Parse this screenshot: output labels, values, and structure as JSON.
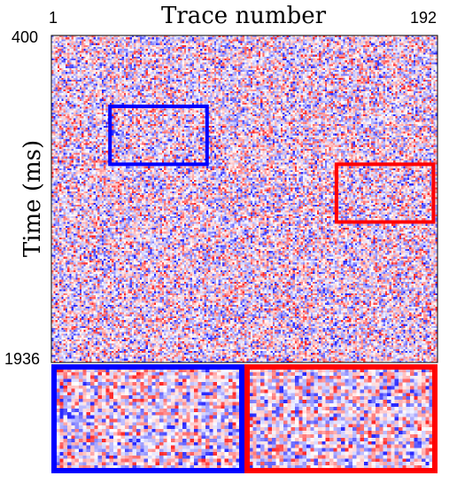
{
  "chart_data": {
    "type": "heatmap",
    "title": "",
    "xlabel": "Trace number",
    "ylabel": "Time (ms)",
    "x_ticks": [
      "1",
      "192"
    ],
    "y_ticks": [
      "400",
      "1936"
    ],
    "xlim": [
      1,
      192
    ],
    "ylim": [
      400,
      1936
    ],
    "colormap": [
      "#2a2aff",
      "#ffffff",
      "#ff2a2a"
    ],
    "highlight_boxes": [
      {
        "color": "#0000ff",
        "trace_range": [
          30,
          78
        ],
        "time_range": [
          733,
          1005
        ]
      },
      {
        "color": "#ff0000",
        "trace_range": [
          142,
          190
        ],
        "time_range": [
          1005,
          1276
        ]
      }
    ],
    "zoom_panels": [
      {
        "color": "#0000ff",
        "source": 0
      },
      {
        "color": "#ff0000",
        "source": 1
      }
    ]
  }
}
